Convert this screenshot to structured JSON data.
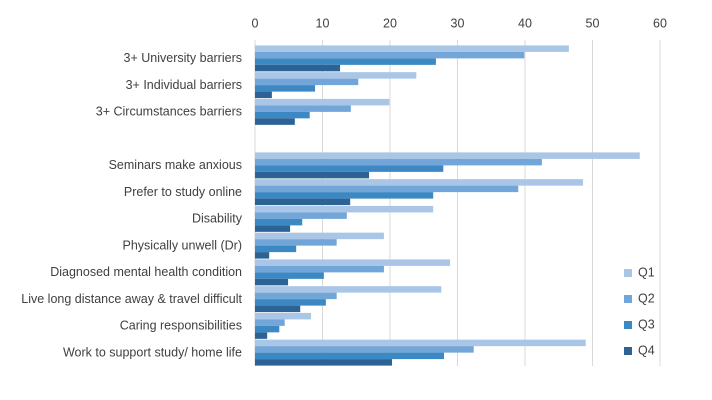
{
  "chart_data": {
    "type": "bar",
    "orientation": "horizontal",
    "categories": [
      "3+ University barriers",
      "3+ Individual barriers",
      "3+ Circumstances barriers",
      null,
      "Seminars make anxious",
      "Prefer to study online",
      "Disability",
      "Physically unwell (Dr)",
      "Diagnosed mental health condition",
      "Live long distance away & travel difficult",
      "Caring responsibilities",
      "Work to support study/ home life"
    ],
    "series": [
      {
        "name": "Q1",
        "color": "#a9c6e6",
        "values": [
          46.5,
          23.9,
          19.9,
          null,
          57.0,
          48.6,
          26.4,
          19.1,
          28.9,
          27.6,
          8.3,
          49.0
        ]
      },
      {
        "name": "Q2",
        "color": "#72a5d8",
        "values": [
          39.9,
          15.3,
          14.2,
          null,
          42.5,
          39.0,
          13.6,
          12.1,
          19.1,
          12.1,
          4.4,
          32.4
        ]
      },
      {
        "name": "Q3",
        "color": "#3b88c3",
        "values": [
          26.8,
          8.9,
          8.1,
          null,
          27.9,
          26.4,
          7.0,
          6.1,
          10.2,
          10.5,
          3.6,
          28.0
        ]
      },
      {
        "name": "Q4",
        "color": "#2c6394",
        "values": [
          12.6,
          2.5,
          5.9,
          null,
          16.9,
          14.1,
          5.2,
          2.1,
          4.9,
          6.7,
          1.8,
          20.3
        ]
      }
    ],
    "xlim": [
      0,
      60
    ],
    "xticks": [
      0,
      10,
      20,
      30,
      40,
      50,
      60
    ],
    "grid": true,
    "legend": "right"
  }
}
